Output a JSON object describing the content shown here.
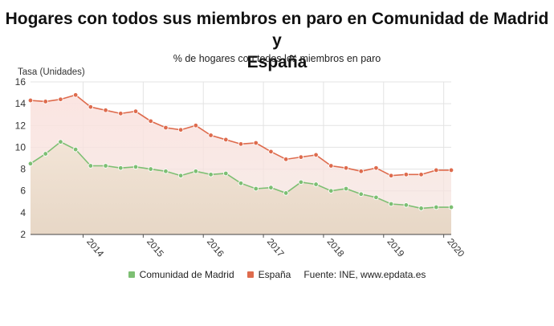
{
  "header": {
    "title_line1": "Hogares con todos sus miembros en paro en Comunidad de Madrid y",
    "title_line2": "España",
    "subtitle": "% de hogares con todos los miembros en paro"
  },
  "legend": {
    "source": "Fuente: INE, www.epdata.es"
  },
  "colors": {
    "madrid": "#7dbf73",
    "espana": "#de6b4d",
    "grid": "#e3e3e3"
  },
  "chart_data": {
    "type": "line",
    "ylabel": "Tasa (Unidades)",
    "ylim": [
      2,
      16
    ],
    "yticks": [
      2,
      4,
      6,
      8,
      10,
      12,
      14,
      16
    ],
    "x": [
      "2013-Q1",
      "2013-Q2",
      "2013-Q3",
      "2013-Q4",
      "2014-Q1",
      "2014-Q2",
      "2014-Q3",
      "2014-Q4",
      "2015-Q1",
      "2015-Q2",
      "2015-Q3",
      "2015-Q4",
      "2016-Q1",
      "2016-Q2",
      "2016-Q3",
      "2016-Q4",
      "2017-Q1",
      "2017-Q2",
      "2017-Q3",
      "2017-Q4",
      "2018-Q1",
      "2018-Q2",
      "2018-Q3",
      "2018-Q4",
      "2019-Q1",
      "2019-Q2",
      "2019-Q3",
      "2019-Q4",
      "2020-Q1"
    ],
    "xticks": [
      "2014",
      "2015",
      "2016",
      "2017",
      "2018",
      "2019",
      "2020"
    ],
    "xtick_positions": [
      3.5,
      7.5,
      11.5,
      15.5,
      19.5,
      23.5,
      27.5
    ],
    "series": [
      {
        "name": "Comunidad de Madrid",
        "color": "#7dbf73",
        "values": [
          8.5,
          9.4,
          10.5,
          9.8,
          8.3,
          8.3,
          8.1,
          8.2,
          8.0,
          7.8,
          7.4,
          7.8,
          7.5,
          7.6,
          6.7,
          6.2,
          6.3,
          5.8,
          6.8,
          6.6,
          6.0,
          6.2,
          5.7,
          5.4,
          4.8,
          4.7,
          4.4,
          4.5,
          4.5
        ]
      },
      {
        "name": "España",
        "color": "#de6b4d",
        "values": [
          14.3,
          14.2,
          14.4,
          14.8,
          13.7,
          13.4,
          13.1,
          13.3,
          12.4,
          11.8,
          11.6,
          12.0,
          11.1,
          10.7,
          10.3,
          10.4,
          9.6,
          8.9,
          9.1,
          9.3,
          8.3,
          8.1,
          7.8,
          8.1,
          7.4,
          7.5,
          7.5,
          7.9,
          7.9
        ]
      }
    ]
  }
}
